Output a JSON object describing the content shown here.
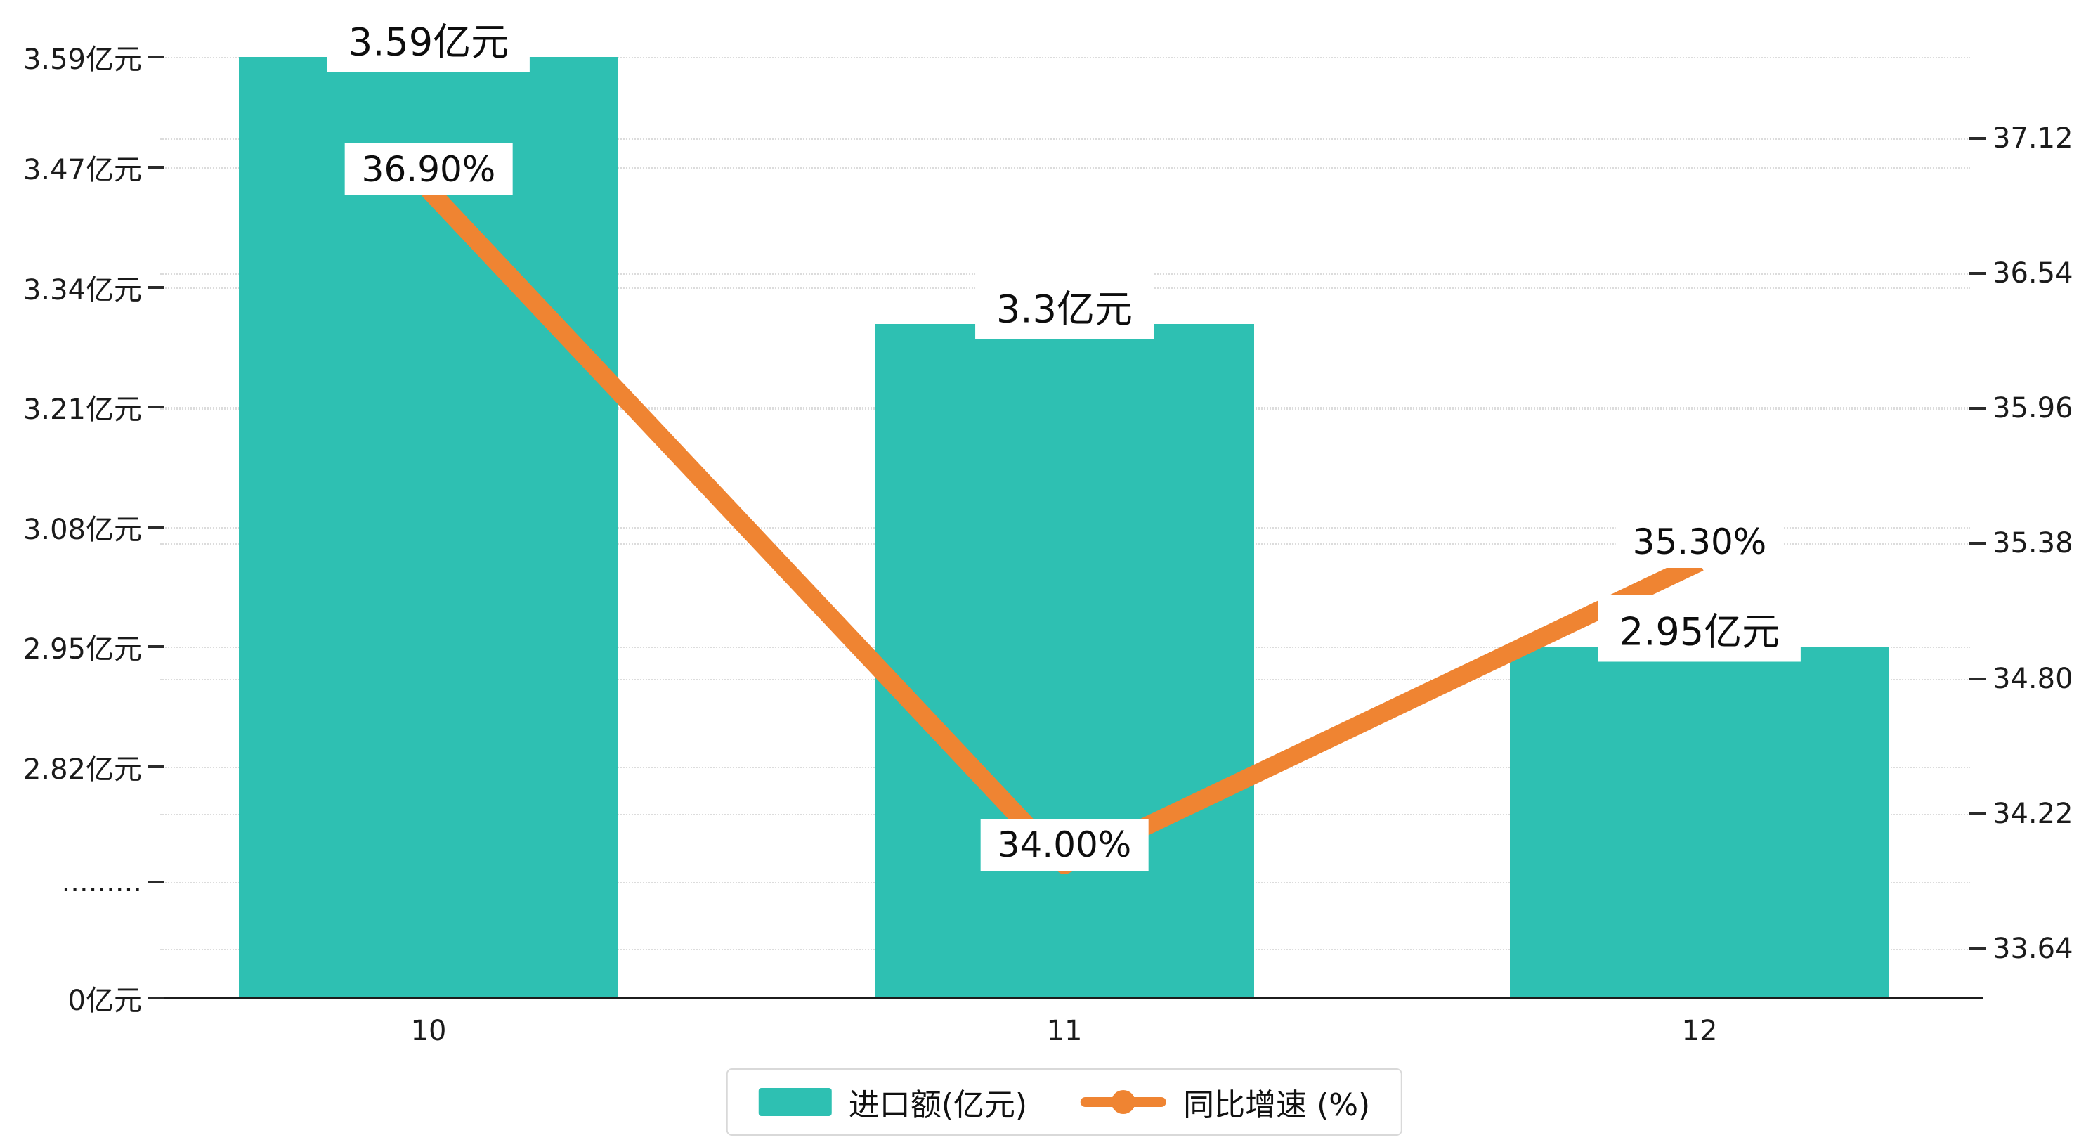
{
  "chart_data": {
    "type": "bar+line",
    "categories": [
      "10",
      "11",
      "12"
    ],
    "series": [
      {
        "name": "进口额(亿元)",
        "type": "bar",
        "axis": "left",
        "values": [
          3.59,
          3.3,
          2.95
        ],
        "data_labels": [
          "3.59亿元",
          "3.3亿元",
          "2.95亿元"
        ],
        "color": "#2ec0b2"
      },
      {
        "name": "同比增速 (%)",
        "type": "line",
        "axis": "right",
        "values": [
          36.9,
          34.0,
          35.3
        ],
        "data_labels": [
          "36.90%",
          "34.00%",
          "35.30%"
        ],
        "color": "#ef8432"
      }
    ],
    "left_axis": {
      "unit": "亿元",
      "tick_labels": [
        "3.59亿元",
        "3.47亿元",
        "3.34亿元",
        "3.21亿元",
        "3.08亿元",
        "2.95亿元",
        "2.82亿元",
        ".........",
        "0亿元"
      ],
      "tick_values": [
        3.59,
        3.47,
        3.34,
        3.21,
        3.08,
        2.95,
        2.82,
        null,
        0
      ],
      "broken_axis": true
    },
    "right_axis": {
      "tick_labels": [
        "37.12",
        "36.54",
        "35.96",
        "35.38",
        "34.80",
        "34.22",
        "33.64"
      ],
      "tick_values": [
        37.12,
        36.54,
        35.96,
        35.38,
        34.8,
        34.22,
        33.64
      ]
    },
    "x_axis": {
      "labels": [
        "10",
        "11",
        "12"
      ]
    },
    "legend": {
      "items": [
        {
          "label": "进口额(亿元)",
          "marker": "bar-swatch",
          "color": "#2ec0b2"
        },
        {
          "label": "同比增速 (%)",
          "marker": "line-dot",
          "color": "#ef8432"
        }
      ],
      "position": "bottom-center"
    },
    "grid": "dotted-horizontal",
    "colors": {
      "bar": "#2ec0b2",
      "line": "#ef8432",
      "axis_text": "#1b1b1b",
      "gridline": "#dcdcdc",
      "label_bg": "#ffffff",
      "axis_line": "#1c1c1c"
    }
  }
}
